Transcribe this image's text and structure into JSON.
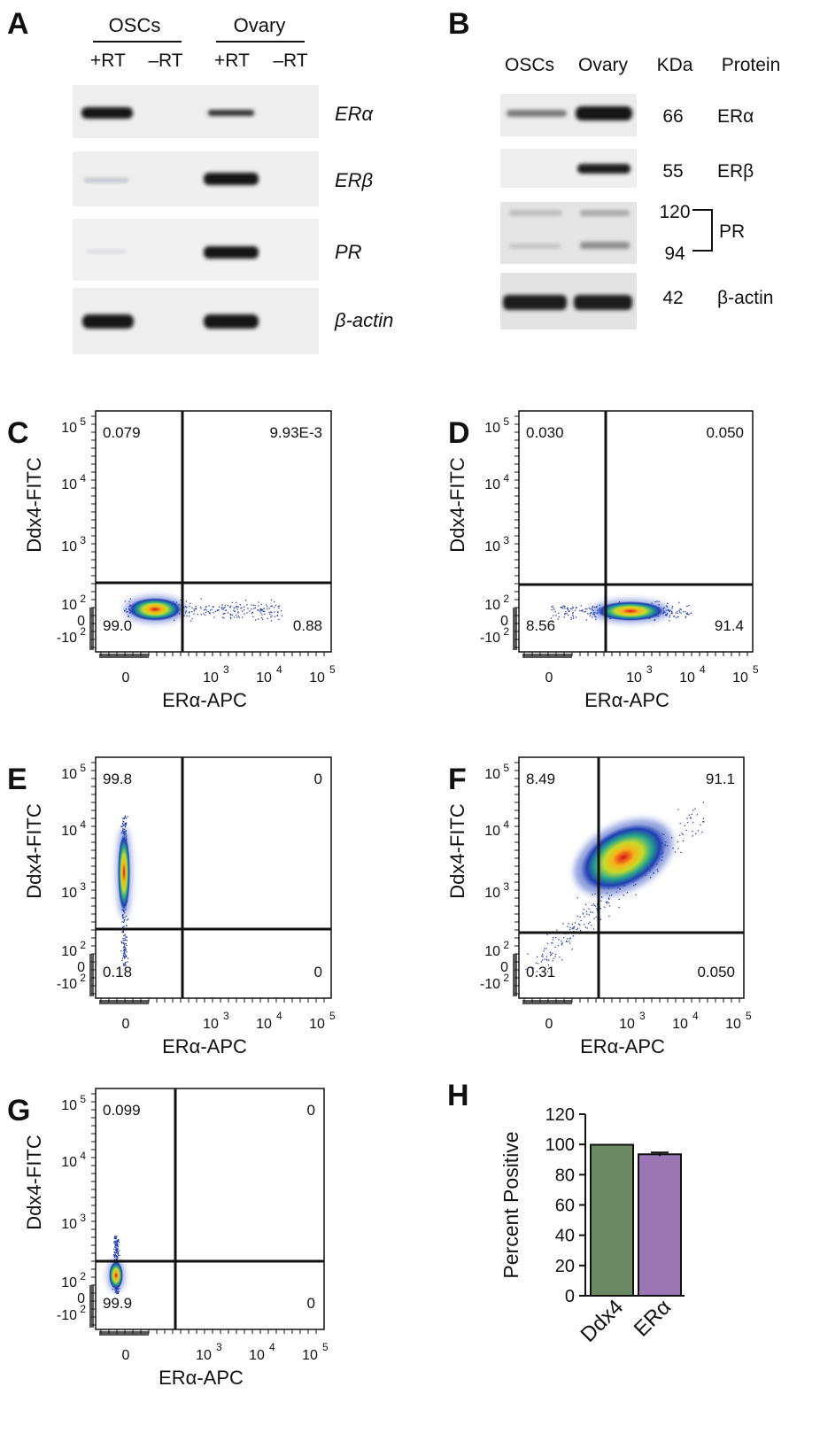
{
  "panels": {
    "A": {
      "label": "A",
      "groups": [
        "OSCs",
        "Ovary"
      ],
      "lanes": [
        "+RT",
        "–RT",
        "+RT",
        "–RT"
      ],
      "genes": [
        "ERα",
        "ERβ",
        "PR",
        "β-actin"
      ]
    },
    "B": {
      "label": "B",
      "headers": [
        "OSCs",
        "Ovary",
        "KDa",
        "Protein"
      ],
      "rows": [
        {
          "kda": "66",
          "protein": "ERα"
        },
        {
          "kda": "55",
          "protein": "ERβ"
        },
        {
          "kda_top": "120",
          "kda_bottom": "94",
          "protein": "PR"
        },
        {
          "kda": "42",
          "protein": "β-actin"
        }
      ]
    }
  },
  "flow_axes": {
    "xlabel": "ERα-APC",
    "ylabel": "Ddx4-FITC",
    "x_ticks": [
      "0",
      "10",
      "10",
      "10"
    ],
    "x_exps": [
      "",
      "3",
      "4",
      "5"
    ],
    "y_ticks": [
      "10",
      "10",
      "10",
      "10",
      "0",
      "-10"
    ],
    "y_exps": [
      "5",
      "4",
      "3",
      "2",
      "",
      "2"
    ]
  },
  "flow_plots": [
    {
      "id": "C",
      "quadrants": {
        "ul": "0.079",
        "ur": "9.93E-3",
        "ll": "99.0",
        "lr": "0.88"
      }
    },
    {
      "id": "D",
      "quadrants": {
        "ul": "0.030",
        "ur": "0.050",
        "ll": "8.56",
        "lr": "91.4"
      }
    },
    {
      "id": "E",
      "quadrants": {
        "ul": "99.8",
        "ur": "0",
        "ll": "0.18",
        "lr": "0"
      }
    },
    {
      "id": "F",
      "quadrants": {
        "ul": "8.49",
        "ur": "91.1",
        "ll": "0.31",
        "lr": "0.050"
      }
    },
    {
      "id": "G",
      "quadrants": {
        "ul": "0.099",
        "ur": "0",
        "ll": "99.9",
        "lr": "0"
      }
    }
  ],
  "chart_data": {
    "type": "bar",
    "panel": "H",
    "categories": [
      "Ddx4",
      "ERα"
    ],
    "values": [
      99.8,
      93.5
    ],
    "error": [
      0,
      1.2
    ],
    "colors": [
      "#6b8a63",
      "#9a76b4"
    ],
    "ylabel": "Percent Positive",
    "ylim": [
      0,
      120
    ],
    "yticks": [
      "0",
      "20",
      "40",
      "60",
      "80",
      "100",
      "120"
    ]
  }
}
